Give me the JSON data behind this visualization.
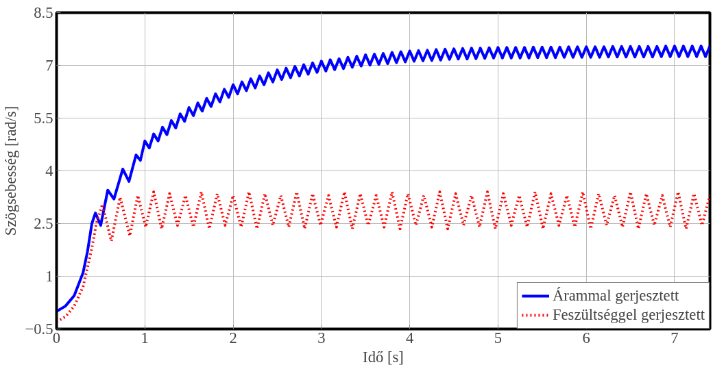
{
  "chart_data": {
    "type": "line",
    "xlabel": "Idő [s]",
    "ylabel": "Szögsebesség [rad/s]",
    "xlim": [
      0,
      7.4
    ],
    "ylim": [
      -0.5,
      8.5
    ],
    "xticks": [
      0,
      1,
      2,
      3,
      4,
      5,
      6,
      7
    ],
    "yticks": [
      {
        "value": -0.5,
        "label": "−0.5"
      },
      1,
      2.5,
      4,
      5.5,
      7,
      8.5
    ],
    "grid": true,
    "legend": "bottom right",
    "series": [
      {
        "name": "Árammal gerjesztett",
        "color": "#0000ff",
        "line_style": "solid",
        "x": [
          0,
          0.1,
          0.2,
          0.3,
          0.35,
          0.4,
          0.44,
          0.5,
          0.58,
          0.65,
          0.75,
          0.82,
          0.9,
          0.95,
          1.0,
          1.05,
          1.1,
          1.15,
          1.2,
          1.25,
          1.3,
          1.35,
          1.4,
          1.45,
          1.5,
          1.55,
          1.6,
          1.65,
          1.7,
          1.75,
          1.8,
          1.85,
          1.9,
          1.95,
          2.0,
          2.05,
          2.1,
          2.15,
          2.2,
          2.25,
          2.3,
          2.35,
          2.4,
          2.45,
          2.5,
          2.55,
          2.6,
          2.65,
          2.7,
          2.75,
          2.8,
          2.85,
          2.9,
          2.95,
          3.0,
          3.05,
          3.1,
          3.15,
          3.2,
          3.25,
          3.3,
          3.35,
          3.4,
          3.45,
          3.5,
          3.55,
          3.6,
          3.65,
          3.7,
          3.75,
          3.8,
          3.85,
          3.9,
          3.95,
          4.0,
          4.05,
          4.1,
          4.15,
          4.2,
          4.25,
          4.3,
          4.35,
          4.4,
          4.45,
          4.5,
          4.55,
          4.6,
          4.65,
          4.7,
          4.75,
          4.8,
          4.85,
          4.9,
          4.95,
          5.0,
          5.05,
          5.1,
          5.15,
          5.2,
          5.25,
          5.3,
          5.35,
          5.4,
          5.45,
          5.5,
          5.55,
          5.6,
          5.65,
          5.7,
          5.75,
          5.8,
          5.85,
          5.9,
          5.95,
          6.0,
          6.05,
          6.1,
          6.15,
          6.2,
          6.25,
          6.3,
          6.35,
          6.4,
          6.45,
          6.5,
          6.55,
          6.6,
          6.65,
          6.7,
          6.75,
          6.8,
          6.85,
          6.9,
          6.95,
          7.0,
          7.05,
          7.1,
          7.15,
          7.2,
          7.25,
          7.3,
          7.35,
          7.4
        ],
        "values": [
          0.0,
          0.15,
          0.45,
          1.1,
          1.7,
          2.5,
          2.8,
          2.45,
          3.45,
          3.2,
          4.05,
          3.7,
          4.45,
          4.3,
          4.85,
          4.65,
          5.05,
          4.85,
          5.24,
          5.03,
          5.43,
          5.22,
          5.62,
          5.41,
          5.8,
          5.57,
          5.93,
          5.7,
          6.06,
          5.83,
          6.19,
          5.96,
          6.32,
          6.09,
          6.45,
          6.19,
          6.53,
          6.28,
          6.62,
          6.36,
          6.7,
          6.45,
          6.79,
          6.53,
          6.87,
          6.6,
          6.92,
          6.65,
          6.97,
          6.7,
          7.02,
          6.75,
          7.07,
          6.8,
          7.12,
          6.84,
          7.16,
          6.88,
          7.19,
          6.91,
          7.23,
          6.95,
          7.26,
          6.98,
          7.3,
          7.01,
          7.32,
          7.03,
          7.34,
          7.05,
          7.37,
          7.08,
          7.39,
          7.1,
          7.41,
          7.12,
          7.42,
          7.13,
          7.43,
          7.14,
          7.45,
          7.15,
          7.46,
          7.17,
          7.47,
          7.18,
          7.48,
          7.18,
          7.49,
          7.19,
          7.49,
          7.2,
          7.5,
          7.21,
          7.51,
          7.21,
          7.51,
          7.21,
          7.51,
          7.21,
          7.51,
          7.21,
          7.52,
          7.22,
          7.52,
          7.22,
          7.52,
          7.22,
          7.52,
          7.23,
          7.53,
          7.23,
          7.53,
          7.23,
          7.53,
          7.23,
          7.53,
          7.23,
          7.53,
          7.24,
          7.54,
          7.24,
          7.54,
          7.24,
          7.54,
          7.24,
          7.54,
          7.24,
          7.54,
          7.24,
          7.54,
          7.25,
          7.55,
          7.25,
          7.55,
          7.25,
          7.55,
          7.25,
          7.55,
          7.25,
          7.55,
          7.25,
          7.55
        ]
      },
      {
        "name": "Feszültséggel gerjesztett",
        "color": "#ff0000",
        "line_style": "dotted",
        "x": [
          0,
          0.1,
          0.2,
          0.3,
          0.4,
          0.45,
          0.52,
          0.62,
          0.72,
          0.83,
          0.92,
          1.01,
          1.1,
          1.19,
          1.28,
          1.37,
          1.46,
          1.55,
          1.64,
          1.73,
          1.82,
          1.91,
          2.0,
          2.09,
          2.18,
          2.27,
          2.36,
          2.45,
          2.54,
          2.63,
          2.72,
          2.81,
          2.9,
          2.99,
          3.08,
          3.17,
          3.26,
          3.35,
          3.44,
          3.53,
          3.62,
          3.71,
          3.8,
          3.89,
          3.98,
          4.07,
          4.16,
          4.25,
          4.34,
          4.43,
          4.52,
          4.61,
          4.7,
          4.79,
          4.88,
          4.97,
          5.06,
          5.15,
          5.24,
          5.33,
          5.42,
          5.51,
          5.6,
          5.69,
          5.78,
          5.87,
          5.96,
          6.05,
          6.14,
          6.23,
          6.32,
          6.41,
          6.5,
          6.59,
          6.68,
          6.77,
          6.86,
          6.95,
          7.04,
          7.13,
          7.22,
          7.31,
          7.4
        ],
        "values": [
          -0.3,
          -0.15,
          0.15,
          0.7,
          1.8,
          2.5,
          3.05,
          2.0,
          3.25,
          2.15,
          3.3,
          2.4,
          3.4,
          2.35,
          3.35,
          2.45,
          3.3,
          2.4,
          3.4,
          2.35,
          3.35,
          2.45,
          3.3,
          2.4,
          3.4,
          2.35,
          3.35,
          2.45,
          3.3,
          2.4,
          3.4,
          2.35,
          3.35,
          2.45,
          3.3,
          2.4,
          3.4,
          2.35,
          3.35,
          2.45,
          3.3,
          2.4,
          3.4,
          2.35,
          3.35,
          2.45,
          3.3,
          2.4,
          3.4,
          2.35,
          3.35,
          2.45,
          3.3,
          2.4,
          3.4,
          2.35,
          3.35,
          2.45,
          3.3,
          2.4,
          3.4,
          2.35,
          3.35,
          2.45,
          3.3,
          2.4,
          3.4,
          2.35,
          3.35,
          2.45,
          3.3,
          2.4,
          3.4,
          2.35,
          3.35,
          2.45,
          3.3,
          2.4,
          3.4,
          2.35,
          3.35,
          2.45,
          3.3
        ]
      }
    ]
  }
}
